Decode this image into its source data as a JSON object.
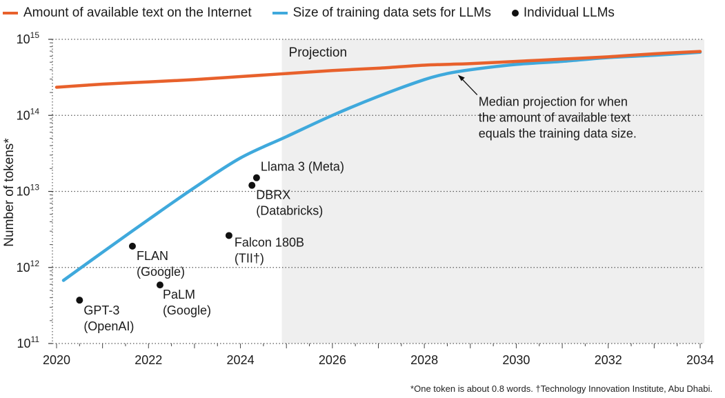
{
  "chart_data": {
    "type": "line",
    "ylabel": "Number of tokens*",
    "yscale": "log",
    "ylim_exponents": [
      11,
      15
    ],
    "y_ticks": [
      {
        "base": "10",
        "exp": "15",
        "value": 1000000000000000.0
      },
      {
        "base": "10",
        "exp": "14",
        "value": 100000000000000.0
      },
      {
        "base": "10",
        "exp": "13",
        "value": 10000000000000.0
      },
      {
        "base": "10",
        "exp": "12",
        "value": 1000000000000.0
      },
      {
        "base": "10",
        "exp": "11",
        "value": 100000000000.0
      }
    ],
    "xlim": [
      2020,
      2034
    ],
    "x_ticks": [
      "2020",
      "2022",
      "2024",
      "2026",
      "2028",
      "2030",
      "2032",
      "2034"
    ],
    "projection_start": 2024.9,
    "projection_label": "Projection",
    "series": [
      {
        "name": "Amount of available text on the Internet",
        "color": "#e8612c",
        "x": [
          2020,
          2021,
          2022,
          2023,
          2024,
          2025,
          2026,
          2027,
          2028,
          2029,
          2030,
          2031,
          2032,
          2033,
          2034
        ],
        "log10_values": [
          14.37,
          14.41,
          14.44,
          14.47,
          14.51,
          14.55,
          14.59,
          14.62,
          14.66,
          14.68,
          14.71,
          14.74,
          14.77,
          14.81,
          14.84
        ]
      },
      {
        "name": "Size of training data sets for LLMs",
        "color": "#3fa9dc",
        "x": [
          2020.15,
          2021,
          2022,
          2023,
          2024,
          2025,
          2026,
          2027,
          2028,
          2028.5,
          2029,
          2030,
          2031,
          2032,
          2033,
          2034
        ],
        "log10_values": [
          11.83,
          12.2,
          12.63,
          13.05,
          13.44,
          13.72,
          14.0,
          14.25,
          14.47,
          14.55,
          14.6,
          14.67,
          14.71,
          14.76,
          14.79,
          14.83
        ]
      }
    ],
    "legend_dots_label": "Individual LLMs",
    "models": [
      {
        "name": "GPT-3",
        "org": "(OpenAI)",
        "x": 2020.5,
        "log10_value": 11.57
      },
      {
        "name": "FLAN",
        "org": "(Google)",
        "x": 2021.65,
        "log10_value": 12.28
      },
      {
        "name": "PaLM",
        "org": "(Google)",
        "x": 2022.25,
        "log10_value": 11.77
      },
      {
        "name": "Falcon 180B",
        "org": "(TII†)",
        "x": 2023.75,
        "log10_value": 12.42
      },
      {
        "name": "DBRX",
        "org": "(Databricks)",
        "x": 2024.25,
        "log10_value": 13.08
      },
      {
        "name": "Llama 3 (Meta)",
        "org": "",
        "x": 2024.35,
        "log10_value": 13.18
      }
    ],
    "annotation": {
      "lines": [
        "Median projection for when",
        "the amount of available text",
        "equals the training data size."
      ],
      "x": 2028.7,
      "log10_value": 14.56
    },
    "footnote": "*One token is about 0.8 words. †Technology Innovation Institute, Abu Dhabi."
  },
  "colors": {
    "internet": "#e8612c",
    "training": "#3fa9dc",
    "projection_bg": "#efefef",
    "dot": "#111111"
  }
}
